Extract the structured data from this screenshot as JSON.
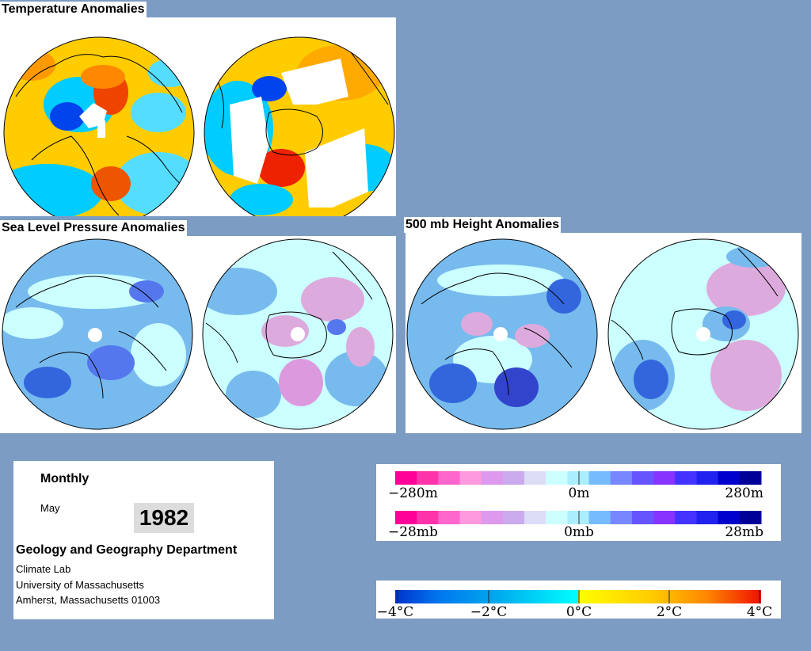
{
  "headings": {
    "temperature": "Temperature Anomalies",
    "slp": "Sea Level Pressure Anomalies",
    "height500": "500 mb Height Anomalies"
  },
  "info": {
    "period": "Monthly",
    "month": "May",
    "year": "1982",
    "department": "Geology and Geography Department",
    "lab": "Climate Lab",
    "university": "University of Massachusetts",
    "address": "Amherst, Massachusetts 01003"
  },
  "scales": {
    "height": {
      "colors": [
        "#ff0099",
        "#ff33aa",
        "#ff66cc",
        "#ff99dd",
        "#dd99ee",
        "#ccaaee",
        "#ddddf8",
        "#ccffff",
        "#aaeeff",
        "#77bbff",
        "#7788ff",
        "#6655ff",
        "#8833ff",
        "#4433ff",
        "#2222ee",
        "#0000cc",
        "#000099"
      ],
      "labels": [
        "−280m",
        "0m",
        "280m"
      ]
    },
    "pressure": {
      "colors": [
        "#ff0099",
        "#ff33aa",
        "#ff66cc",
        "#ff99dd",
        "#dd99ee",
        "#ccaaee",
        "#ddddf8",
        "#ccffff",
        "#aaeeff",
        "#77bbff",
        "#7788ff",
        "#6655ff",
        "#8833ff",
        "#4433ff",
        "#2222ee",
        "#0000cc",
        "#000099"
      ],
      "labels": [
        "−28mb",
        "0mb",
        "28mb"
      ]
    },
    "temperature": {
      "labels": [
        "−4°C",
        "−2°C",
        "0°C",
        "2°C",
        "4°C"
      ]
    }
  },
  "colors": {
    "background": "#7c9cc4",
    "map_light": "#ccffff",
    "map_mid": "#77bbee",
    "map_dark": "#3366dd",
    "map_pink": "#ddaadd",
    "map_pink_dark": "#ff66cc",
    "temp_yellow": "#ffcc00",
    "temp_orange": "#ff8800",
    "temp_red": "#ee2200",
    "temp_cyan": "#00ccff",
    "temp_blue": "#0033ee"
  }
}
